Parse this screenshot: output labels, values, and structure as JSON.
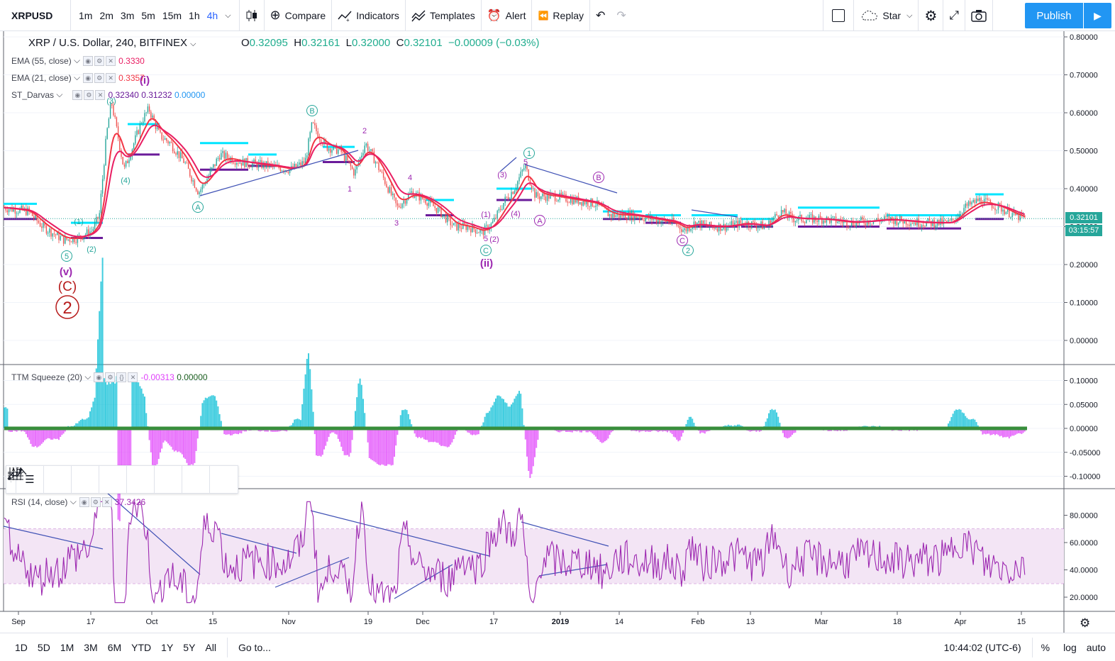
{
  "toolbar": {
    "symbol": "XRPUSD",
    "intervals": [
      "1m",
      "2m",
      "3m",
      "5m",
      "15m",
      "1h",
      "4h"
    ],
    "active_interval": "4h",
    "compare": "Compare",
    "indicators": "Indicators",
    "templates": "Templates",
    "alert": "Alert",
    "replay": "Replay",
    "star": "Star",
    "publish": "Publish"
  },
  "main_pane": {
    "title": "XRP / U.S. Dollar, 240, BITFINEX",
    "open_label": "O",
    "open": "0.32095",
    "high_label": "H",
    "high": "0.32161",
    "low_label": "L",
    "low": "0.32000",
    "close_label": "C",
    "close": "0.32101",
    "change": "−0.00009 (−0.03%)",
    "ema55_name": "EMA (55, close)",
    "ema55_value": "0.3330",
    "ema21_name": "EMA (21, close)",
    "ema21_value": "0.3357",
    "darvas_name": "ST_Darvas",
    "darvas_v1": "0.32340",
    "darvas_v2": "0.31232",
    "darvas_v3": "0.00000",
    "last_price": "0.32101",
    "countdown": "03:15:57",
    "price_ticks": [
      "0.80000",
      "0.70000",
      "0.60000",
      "0.50000",
      "0.40000",
      "0.30000",
      "0.20000",
      "0.10000",
      "0.00000"
    ],
    "wave_labels": {
      "v": "(v)",
      "C": "(C)",
      "two": "2",
      "ii": "(ii)",
      "i": "(i)",
      "n5": "5",
      "n1": "(1)",
      "n2": "(2)",
      "n3": "(3)",
      "n4": "(4)",
      "A": "A",
      "B": "B",
      "C_circ": "C",
      "one_circ": "1",
      "two_circ": "2",
      "p1": "1",
      "p2": "2",
      "p3": "3",
      "p4": "4",
      "p5": "5",
      "pa": "A",
      "pb": "B",
      "pc": "C"
    }
  },
  "ttm_pane": {
    "name": "TTM Squeeze (20)",
    "v1": "-0.00313",
    "v2": "0.00000",
    "ticks": [
      "0.10000",
      "0.05000",
      "0.00000",
      "-0.05000",
      "-0.10000"
    ]
  },
  "rsi_pane": {
    "name": "RSI (14, close)",
    "value": "37.3426",
    "ticks": [
      "80.0000",
      "60.0000",
      "40.0000",
      "20.0000"
    ]
  },
  "time_axis": [
    "Sep",
    "17",
    "Oct",
    "15",
    "Nov",
    "19",
    "Dec",
    "17",
    "2019",
    "14",
    "Feb",
    "13",
    "Mar",
    "18",
    "Apr",
    "15"
  ],
  "bottom": {
    "ranges": [
      "1D",
      "5D",
      "1M",
      "3M",
      "6M",
      "YTD",
      "1Y",
      "5Y",
      "All"
    ],
    "goto": "Go to...",
    "clock": "10:44:02 (UTC-6)",
    "percent": "%",
    "log": "log",
    "auto": "auto"
  },
  "colors": {
    "up": "#26a69a",
    "down": "#ef5350",
    "ema55": "#e91e63",
    "ema21": "#f23645",
    "darvas_top": "#00e5ff",
    "darvas_bottom": "#6a1b9a",
    "rsi": "#9c27b0",
    "rsi_band": "#f3e5f5",
    "accent": "#2962ff",
    "publish": "#2196f3"
  }
}
